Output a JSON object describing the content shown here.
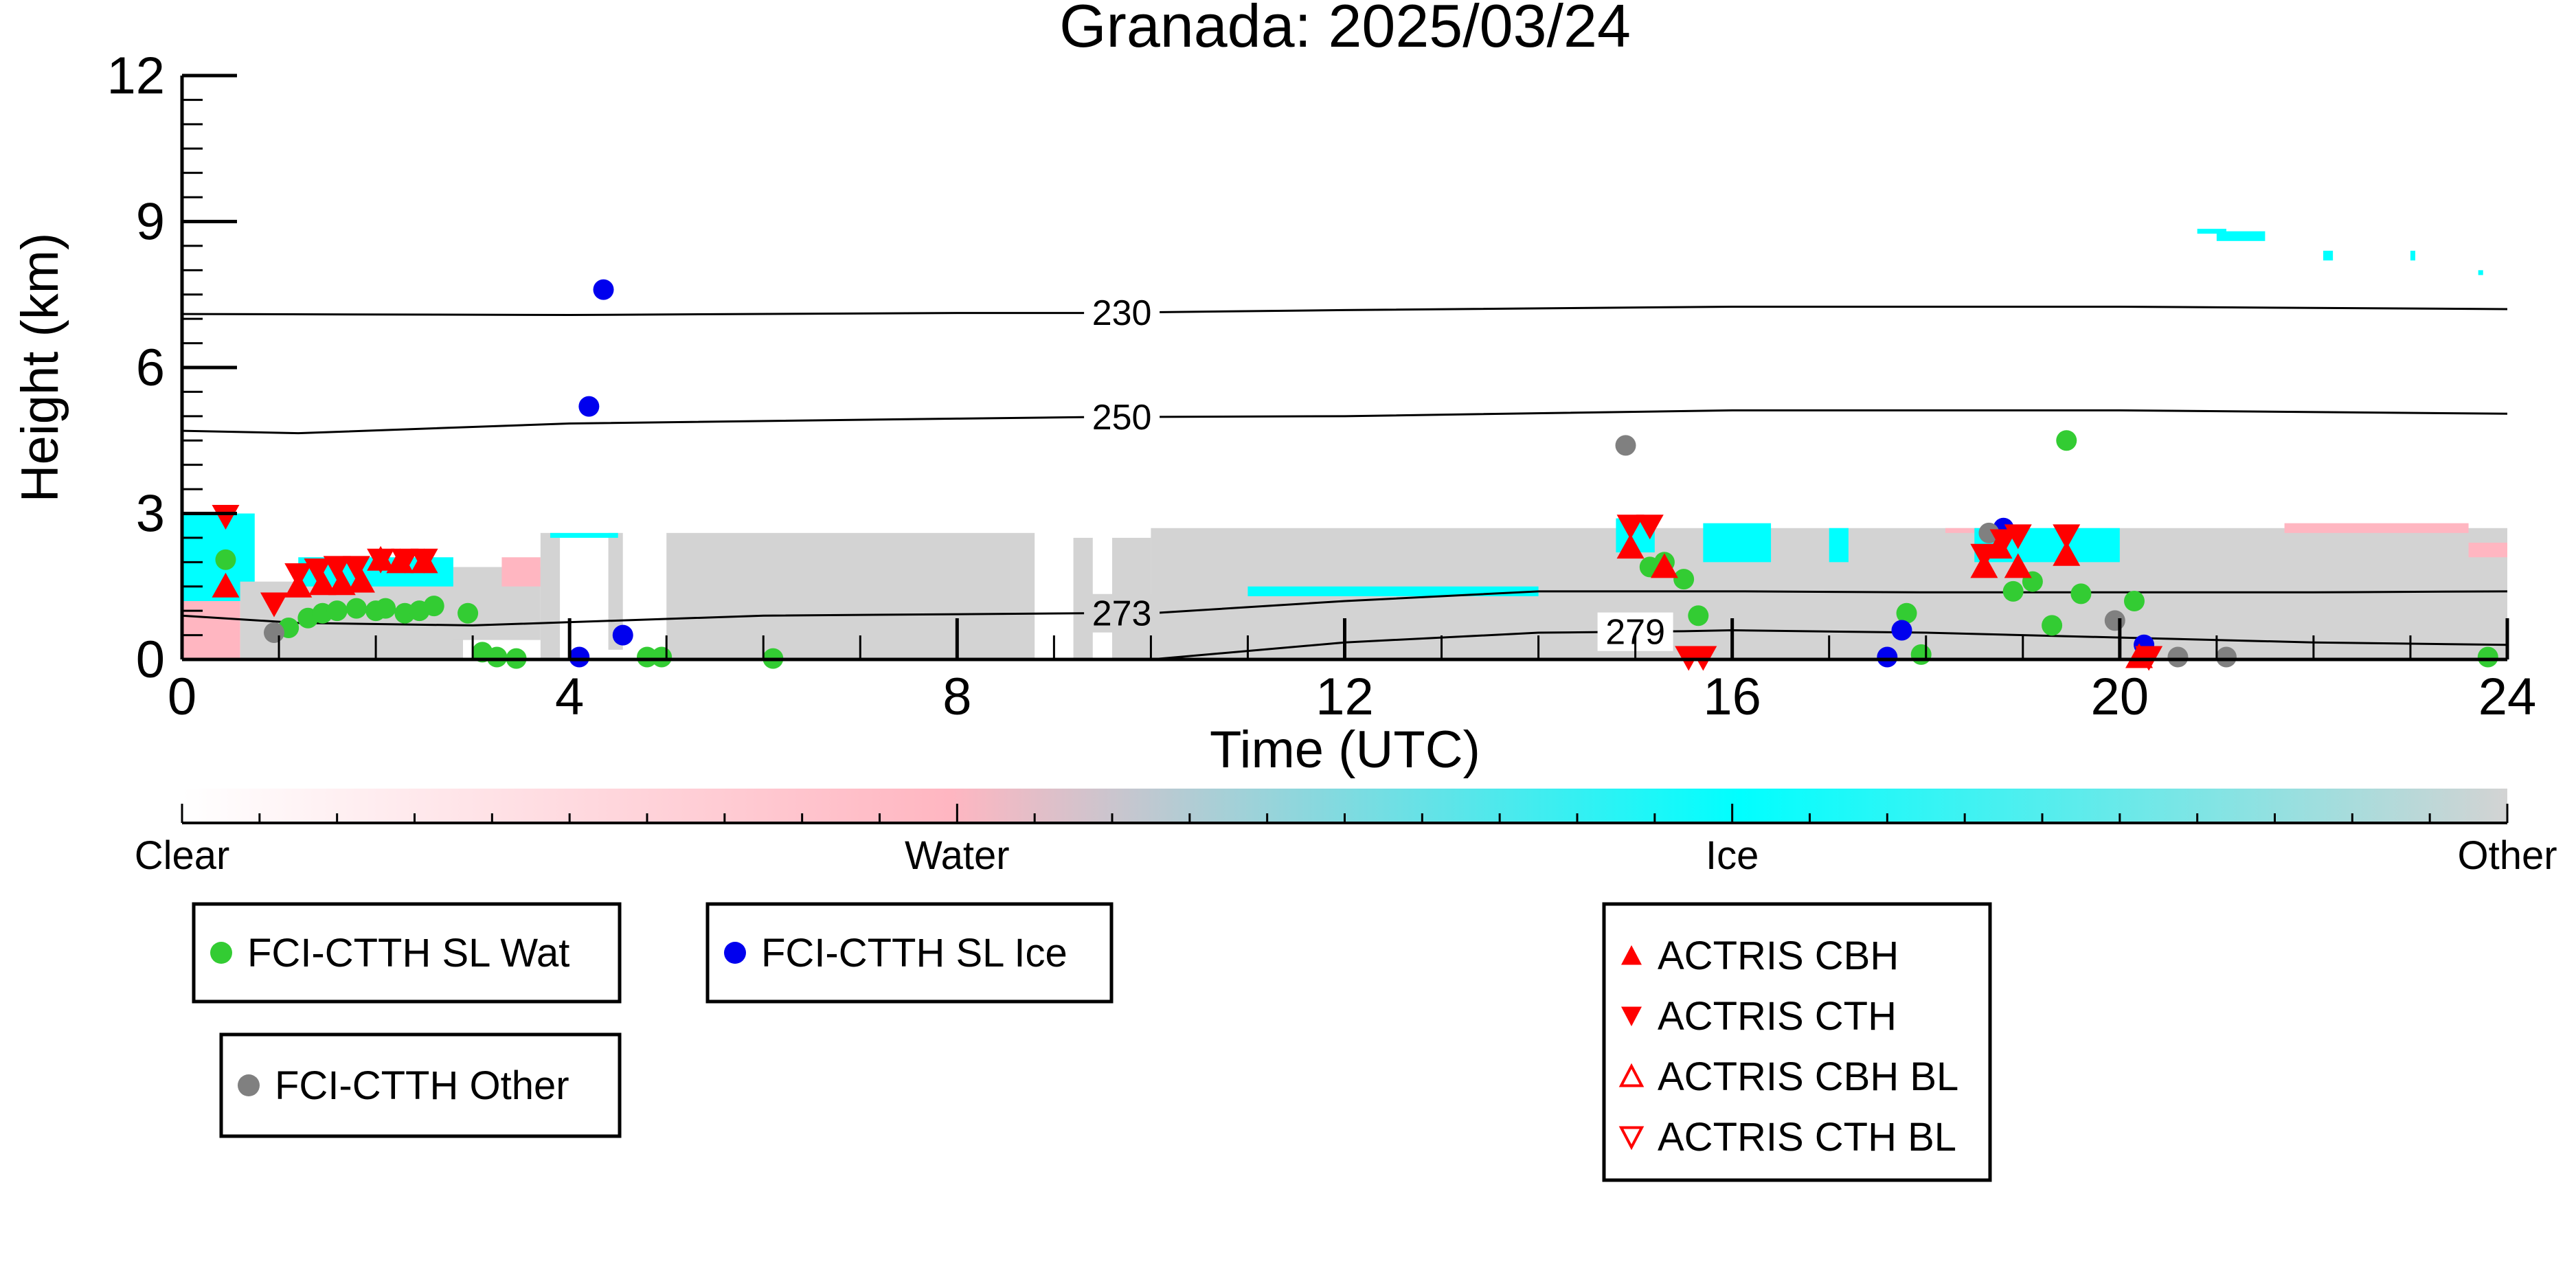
{
  "chart_data": {
    "type": "scatter",
    "title": "Granada: 2025/03/24",
    "xlabel": "Time (UTC)",
    "ylabel": "Height (km)",
    "xlim": [
      0,
      24
    ],
    "ylim": [
      0,
      12
    ],
    "x_ticks": [
      "0",
      "4",
      "8",
      "12",
      "16",
      "20",
      "24"
    ],
    "y_ticks": [
      "0",
      "3",
      "6",
      "9",
      "12"
    ],
    "background": "cloud phase curtain (clear / water / ice / other)",
    "colorbar": {
      "labels": [
        "Clear",
        "Water",
        "Ice",
        "Other"
      ],
      "colors": [
        "#ffffff",
        "#ffb6c1",
        "#00ffff",
        "#d3d3d3"
      ]
    },
    "isotherms": [
      {
        "label": "230",
        "x": [
          0,
          4,
          8,
          9.3,
          12,
          16,
          20,
          24
        ],
        "y": [
          7.1,
          7.08,
          7.12,
          7.12,
          7.18,
          7.25,
          7.25,
          7.2
        ]
      },
      {
        "label": "250",
        "x": [
          0,
          1.2,
          4,
          8,
          9.3,
          12,
          16,
          20,
          24
        ],
        "y": [
          4.7,
          4.65,
          4.85,
          4.95,
          4.98,
          5.0,
          5.12,
          5.12,
          5.05
        ]
      },
      {
        "label": "273",
        "x": [
          0,
          1.2,
          3,
          6,
          9.3,
          10,
          12,
          14,
          16,
          18,
          20,
          22,
          24
        ],
        "y": [
          0.9,
          0.75,
          0.7,
          0.9,
          0.95,
          0.95,
          1.2,
          1.4,
          1.4,
          1.38,
          1.38,
          1.38,
          1.4
        ]
      },
      {
        "label": "279",
        "x": [
          10,
          12,
          14,
          15.5,
          16,
          18,
          20,
          22,
          24
        ],
        "y": [
          0,
          0.35,
          0.55,
          0.58,
          0.6,
          0.55,
          0.45,
          0.35,
          0.3
        ]
      }
    ],
    "series": [
      {
        "name": "FCI-CTTH SL Wat",
        "color": "#33cc33",
        "marker": "circle",
        "points": [
          [
            0.45,
            2.05
          ],
          [
            1.1,
            0.65
          ],
          [
            1.3,
            0.85
          ],
          [
            1.45,
            0.95
          ],
          [
            1.6,
            1.0
          ],
          [
            1.8,
            1.05
          ],
          [
            2.0,
            1.0
          ],
          [
            2.1,
            1.05
          ],
          [
            2.3,
            0.95
          ],
          [
            2.45,
            1.0
          ],
          [
            2.6,
            1.1
          ],
          [
            2.95,
            0.95
          ],
          [
            3.1,
            0.15
          ],
          [
            3.25,
            0.05
          ],
          [
            3.45,
            0.02
          ],
          [
            4.8,
            0.05
          ],
          [
            4.95,
            0.05
          ],
          [
            6.1,
            0.02
          ],
          [
            15.15,
            1.9
          ],
          [
            15.3,
            2.0
          ],
          [
            15.5,
            1.65
          ],
          [
            15.65,
            0.9
          ],
          [
            17.8,
            0.95
          ],
          [
            17.95,
            0.1
          ],
          [
            18.9,
            1.4
          ],
          [
            19.1,
            1.6
          ],
          [
            19.3,
            0.7
          ],
          [
            19.45,
            4.5
          ],
          [
            19.6,
            1.35
          ],
          [
            20.15,
            1.2
          ],
          [
            23.8,
            0.05
          ]
        ]
      },
      {
        "name": "FCI-CTTH SL Ice",
        "color": "#0000ee",
        "marker": "circle",
        "points": [
          [
            4.2,
            5.2
          ],
          [
            4.35,
            7.6
          ],
          [
            4.55,
            0.5
          ],
          [
            4.1,
            0.05
          ],
          [
            17.6,
            0.05
          ],
          [
            17.75,
            0.6
          ],
          [
            18.8,
            2.7
          ],
          [
            20.25,
            0.3
          ]
        ]
      },
      {
        "name": "FCI-CTTH Other",
        "color": "#808080",
        "marker": "circle",
        "points": [
          [
            0.95,
            0.55
          ],
          [
            14.9,
            4.4
          ],
          [
            18.65,
            2.6
          ],
          [
            19.95,
            0.8
          ],
          [
            20.6,
            0.05
          ],
          [
            21.1,
            0.05
          ]
        ]
      },
      {
        "name": "ACTRIS CBH",
        "color": "#ff0000",
        "marker": "triangle-up",
        "points": [
          [
            0.45,
            1.5
          ],
          [
            1.2,
            1.5
          ],
          [
            1.45,
            1.55
          ],
          [
            1.65,
            1.55
          ],
          [
            1.85,
            1.6
          ],
          [
            2.05,
            2.05
          ],
          [
            2.25,
            2.0
          ],
          [
            2.5,
            2.0
          ],
          [
            14.95,
            2.3
          ],
          [
            15.3,
            1.9
          ],
          [
            18.6,
            1.9
          ],
          [
            18.75,
            2.3
          ],
          [
            18.95,
            1.9
          ],
          [
            19.45,
            2.15
          ],
          [
            20.2,
            0.05
          ]
        ]
      },
      {
        "name": "ACTRIS CTH",
        "color": "#ff0000",
        "marker": "triangle-down",
        "points": [
          [
            0.45,
            2.95
          ],
          [
            0.95,
            1.15
          ],
          [
            1.2,
            1.75
          ],
          [
            1.4,
            1.85
          ],
          [
            1.6,
            1.9
          ],
          [
            1.8,
            1.9
          ],
          [
            2.05,
            2.05
          ],
          [
            2.3,
            2.05
          ],
          [
            2.5,
            2.05
          ],
          [
            14.95,
            2.75
          ],
          [
            15.15,
            2.75
          ],
          [
            15.55,
            0.05
          ],
          [
            15.7,
            0.05
          ],
          [
            18.6,
            2.15
          ],
          [
            18.8,
            2.45
          ],
          [
            18.95,
            2.55
          ],
          [
            19.45,
            2.55
          ],
          [
            20.3,
            0.05
          ]
        ]
      },
      {
        "name": "ACTRIS CBH BL",
        "color": "#ff0000",
        "marker": "triangle-up-open",
        "points": []
      },
      {
        "name": "ACTRIS CTH BL",
        "color": "#ff0000",
        "marker": "triangle-down-open",
        "points": []
      }
    ],
    "legend": [
      {
        "label": "FCI-CTTH SL Wat",
        "marker": "circle",
        "color": "#33cc33"
      },
      {
        "label": "FCI-CTTH SL Ice",
        "marker": "circle",
        "color": "#0000ee"
      },
      {
        "label": "FCI-CTTH Other",
        "marker": "circle",
        "color": "#808080"
      },
      {
        "label": "ACTRIS CBH",
        "marker": "triangle-up",
        "color": "#ff0000"
      },
      {
        "label": "ACTRIS CTH",
        "marker": "triangle-down",
        "color": "#ff0000"
      },
      {
        "label": "ACTRIS CBH BL",
        "marker": "triangle-up-open",
        "color": "#ff0000"
      },
      {
        "label": "ACTRIS CTH BL",
        "marker": "triangle-down-open",
        "color": "#ff0000"
      }
    ]
  }
}
